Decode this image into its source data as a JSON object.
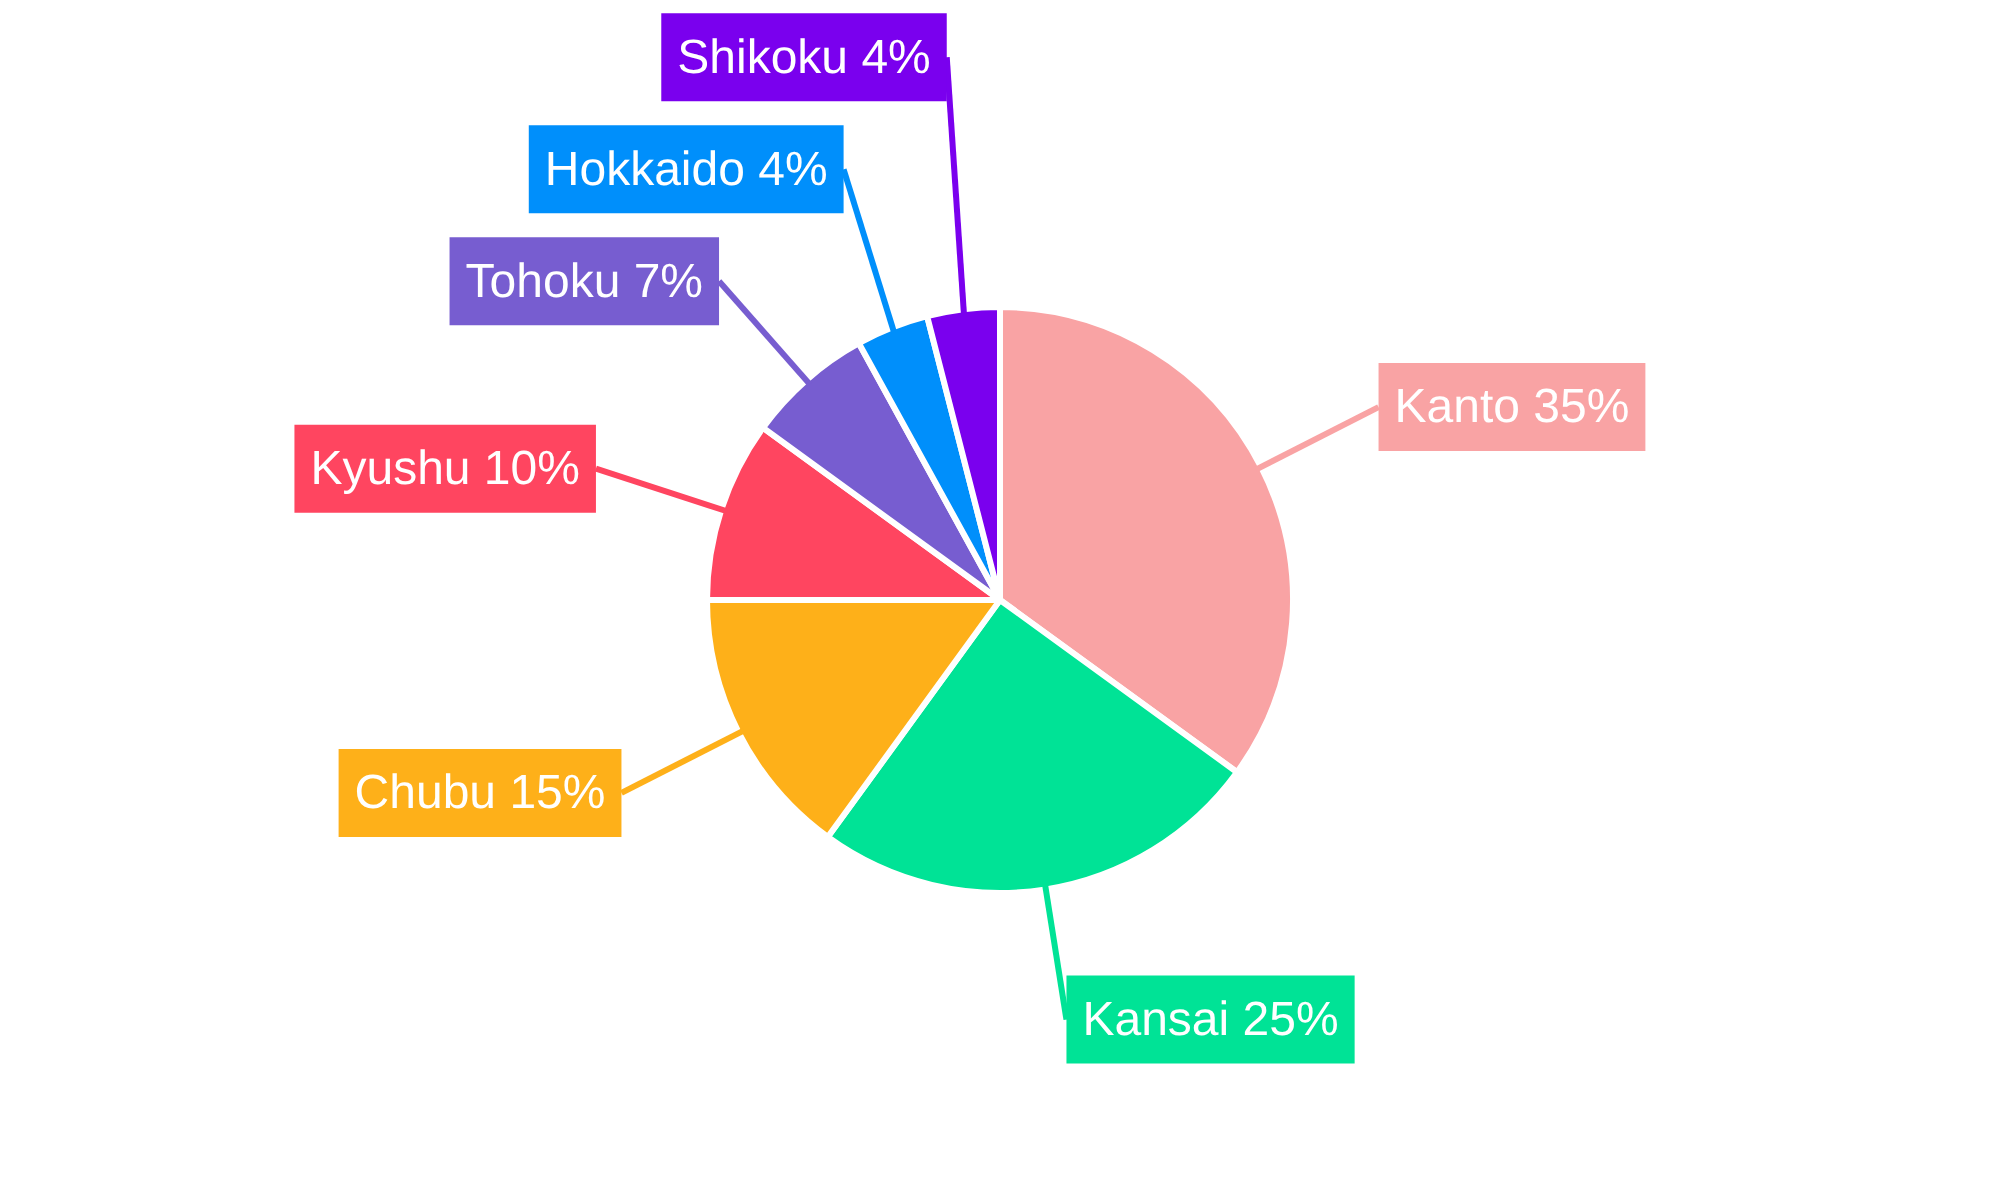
{
  "chart_data": {
    "type": "pie",
    "categories": [
      "Kanto",
      "Kansai",
      "Chubu",
      "Kyushu",
      "Tohoku",
      "Hokkaido",
      "Shikoku"
    ],
    "values": [
      35,
      25,
      15,
      10,
      7,
      4,
      4
    ],
    "colors": [
      "#f9a3a4",
      "#00e396",
      "#feb019",
      "#ff4560",
      "#775dd0",
      "#008ffb",
      "#7a00ee"
    ],
    "value_labels": [
      "35%",
      "25%",
      "15%",
      "10%",
      "7%",
      "4%",
      "4%"
    ]
  }
}
